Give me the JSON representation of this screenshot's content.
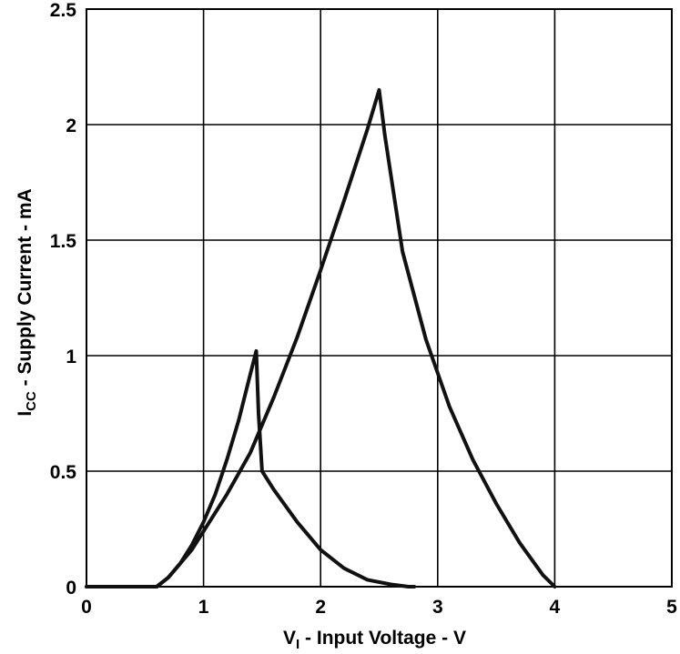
{
  "chart_data": {
    "type": "line",
    "title": "",
    "xlabel": {
      "main": "V",
      "sub": "I",
      "rest": " - Input Voltage - V"
    },
    "ylabel": {
      "main": "I",
      "sub": "CC",
      "rest": " - Supply Current - mA"
    },
    "xlim": [
      0,
      5
    ],
    "ylim": [
      0,
      2.5
    ],
    "xticks": [
      "0",
      "1",
      "2",
      "3",
      "4",
      "5"
    ],
    "yticks": [
      "0",
      "0.5",
      "1",
      "1.5",
      "2",
      "2.5"
    ],
    "grid": true,
    "series": [
      {
        "x": [
          0,
          0.6,
          0.7,
          0.8,
          0.9,
          1.0,
          1.1,
          1.2,
          1.3,
          1.4,
          1.45,
          1.47,
          1.5,
          1.6,
          1.8,
          2.0,
          2.2,
          2.4,
          2.6,
          2.75,
          2.8
        ],
        "y": [
          0,
          0,
          0.04,
          0.1,
          0.18,
          0.28,
          0.4,
          0.55,
          0.72,
          0.92,
          1.02,
          0.75,
          0.5,
          0.42,
          0.28,
          0.16,
          0.08,
          0.03,
          0.01,
          0.0,
          0.0
        ]
      },
      {
        "x": [
          0,
          0.6,
          0.7,
          0.8,
          0.9,
          1.0,
          1.2,
          1.4,
          1.6,
          1.8,
          2.0,
          2.2,
          2.4,
          2.5,
          2.55,
          2.7,
          2.9,
          3.1,
          3.3,
          3.5,
          3.7,
          3.9,
          4.0
        ],
        "y": [
          0,
          0,
          0.04,
          0.1,
          0.16,
          0.24,
          0.4,
          0.58,
          0.82,
          1.08,
          1.37,
          1.67,
          1.98,
          2.15,
          1.95,
          1.45,
          1.07,
          0.78,
          0.55,
          0.36,
          0.19,
          0.05,
          0.0
        ]
      }
    ]
  }
}
